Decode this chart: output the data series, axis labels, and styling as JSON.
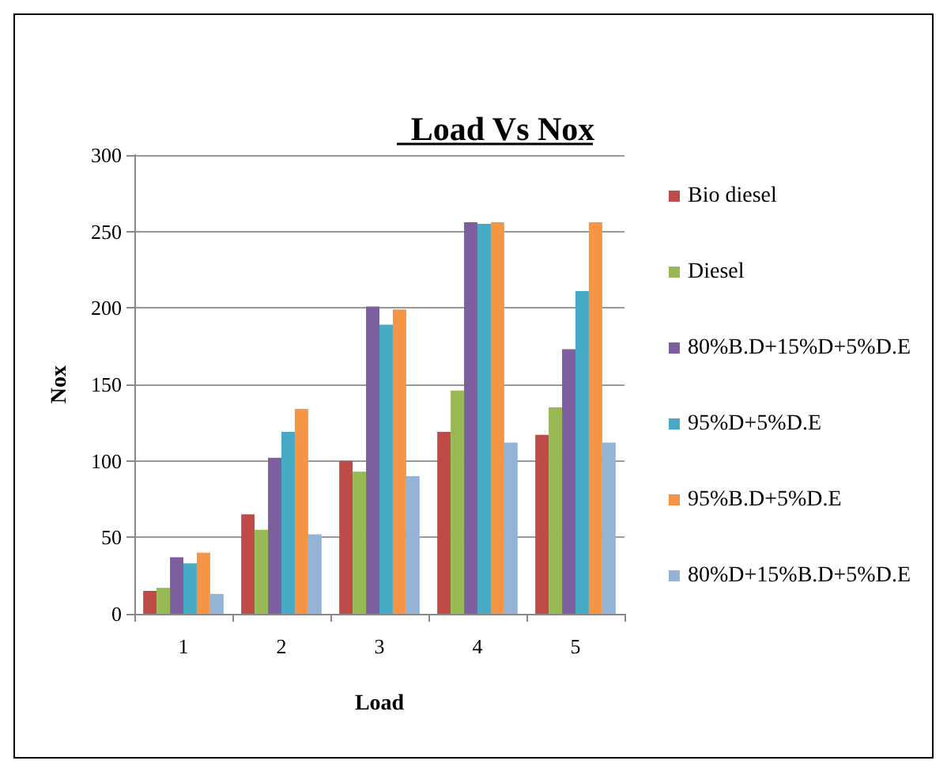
{
  "chart_data": {
    "type": "bar",
    "title": "Load Vs Nox",
    "xlabel": "Load",
    "ylabel": "Nox",
    "categories": [
      "1",
      "2",
      "3",
      "4",
      "5"
    ],
    "series": [
      {
        "name": "Bio diesel",
        "color": "#be4b48",
        "values": [
          15,
          65,
          100,
          119,
          117
        ]
      },
      {
        "name": "Diesel",
        "color": "#98b954",
        "values": [
          17,
          55,
          93,
          146,
          135
        ]
      },
      {
        "name": "80%B.D+15%D+5%D.E",
        "color": "#7d5fa0",
        "values": [
          37,
          102,
          201,
          256,
          173
        ]
      },
      {
        "name": "95%D+5%D.E",
        "color": "#46aac5",
        "values": [
          33,
          119,
          189,
          255,
          211
        ]
      },
      {
        "name": "95%B.D+5%D.E",
        "color": "#f69545",
        "values": [
          40,
          134,
          199,
          256,
          256
        ]
      },
      {
        "name": "80%D+15%B.D+5%D.E",
        "color": "#95b3d7",
        "values": [
          13,
          52,
          90,
          112,
          112
        ]
      }
    ],
    "ylim": [
      0,
      300
    ],
    "yticks": [
      0,
      50,
      100,
      150,
      200,
      250,
      300
    ],
    "grid": "y",
    "legend": "right"
  }
}
